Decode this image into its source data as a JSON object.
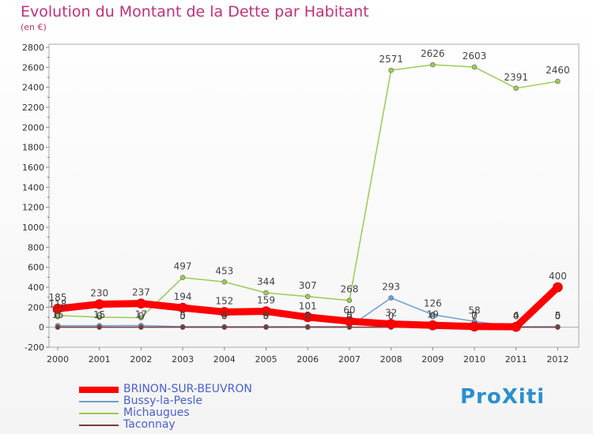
{
  "header": {
    "title": "Evolution du Montant de la Dette par Habitant",
    "subtitle": "(en €)"
  },
  "logo": {
    "text": "ProXiti"
  },
  "chart_data": {
    "type": "line",
    "title": "Evolution du Montant de la Dette par Habitant",
    "subtitle": "(en €)",
    "xlabel": "",
    "ylabel": "",
    "x": [
      "2000",
      "2001",
      "2002",
      "2003",
      "2004",
      "2005",
      "2006",
      "2007",
      "2008",
      "2009",
      "2010",
      "2011",
      "2012"
    ],
    "ylim": [
      -200,
      2800
    ],
    "yticks": [
      -200,
      0,
      200,
      400,
      600,
      800,
      1000,
      1200,
      1400,
      1600,
      1800,
      2000,
      2200,
      2400,
      2600,
      2800
    ],
    "grid": false,
    "legend": "bottom-left",
    "series": [
      {
        "name": "BRINON-SUR-BEUVRON",
        "color": "#ff0000",
        "values": [
          185,
          230,
          237,
          194,
          152,
          159,
          101,
          60,
          32,
          19,
          7,
          4,
          400
        ],
        "labels": [
          "185",
          "230",
          "237",
          "194",
          "152",
          "159",
          "101",
          "60",
          "32",
          "19",
          "7",
          "4",
          "400"
        ]
      },
      {
        "name": "Bussy-la-Pesle",
        "color": "#6a9fd0",
        "values": [
          15,
          15,
          17,
          5,
          5,
          5,
          5,
          5,
          293,
          126,
          58,
          4,
          5
        ],
        "labels": [
          "15",
          "15",
          "17",
          "5",
          "5",
          "5",
          "5",
          "5",
          "293",
          "126",
          "58",
          "4",
          "5"
        ]
      },
      {
        "name": "Michaugues",
        "color": "#99cc55",
        "values": [
          118,
          100,
          95,
          497,
          453,
          344,
          307,
          268,
          2571,
          2626,
          2603,
          2391,
          2460
        ],
        "labels": [
          "118",
          "",
          "",
          "497",
          "453",
          "344",
          "307",
          "268",
          "2571",
          "2626",
          "2603",
          "2391",
          "2460"
        ]
      },
      {
        "name": "Taconnay",
        "color": "#7a3a3a",
        "values": [
          0,
          0,
          0,
          0,
          0,
          0,
          0,
          0,
          0,
          0,
          0,
          0,
          0
        ],
        "labels": [
          "0",
          "0",
          "0",
          "0",
          "0",
          "0",
          "0",
          "0",
          "0",
          "0",
          "0",
          "0",
          "0"
        ]
      }
    ]
  }
}
